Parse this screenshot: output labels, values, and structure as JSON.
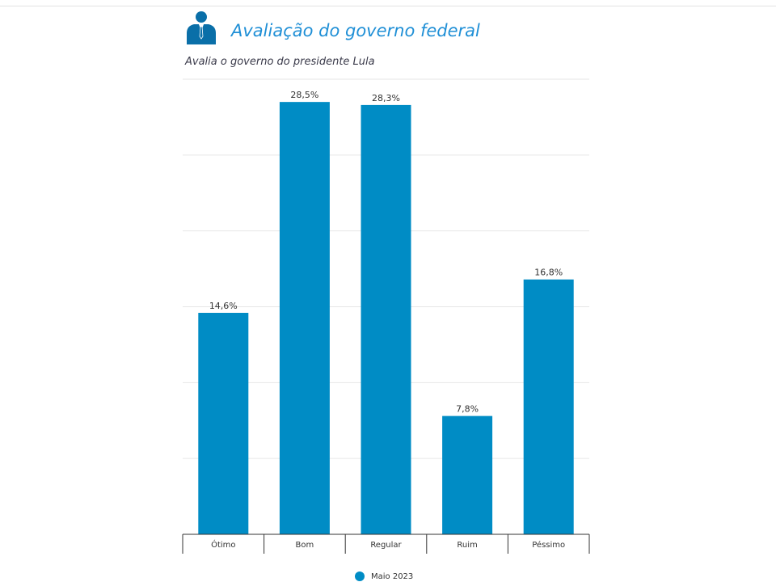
{
  "header": {
    "icon": "person-in-suit-icon",
    "title": "Avaliação do governo federal",
    "subtitle": "Avalia o governo do presidente Lula"
  },
  "colors": {
    "bar": "#008cc5",
    "title": "#1f8fd6",
    "gridline": "#e6e6e6",
    "axis": "#333333"
  },
  "legend": {
    "items": [
      {
        "label": "Maio 2023",
        "color": "#008cc5"
      }
    ]
  },
  "chart_data": {
    "type": "bar",
    "title": "Avaliação do governo federal",
    "subtitle": "Avalia o governo do presidente Lula",
    "categories": [
      "Ótimo",
      "Bom",
      "Regular",
      "Ruim",
      "Péssimo"
    ],
    "series": [
      {
        "name": "Maio 2023",
        "values": [
          14.6,
          28.5,
          28.3,
          7.8,
          16.8
        ],
        "labels": [
          "14,6%",
          "28,5%",
          "28,3%",
          "7,8%",
          "16,8%"
        ]
      }
    ],
    "ylim": [
      0,
      30
    ],
    "grid": true,
    "legend_position": "bottom-center"
  }
}
